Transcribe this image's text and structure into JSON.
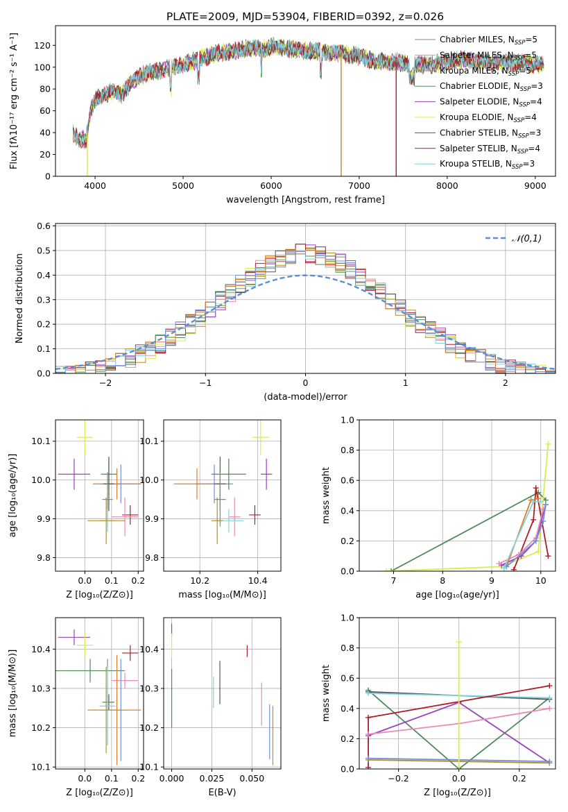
{
  "figure": {
    "title": "PLATE=2009, MJD=53904, FIBERID=0392, z=0.026"
  },
  "models": [
    {
      "name": "Chabrier MILES, N",
      "sub": "SSP",
      "suffix": "=5",
      "color": "#6b9b6b"
    },
    {
      "name": "Salpeter MILES, N",
      "sub": "SSP",
      "suffix": "=5",
      "color": "#e88ab8"
    },
    {
      "name": "Kroupa MILES, N",
      "sub": "SSP",
      "suffix": "=5",
      "color": "#b58b2a"
    },
    {
      "name": "Chabrier ELODIE, N",
      "sub": "SSP",
      "suffix": "=3",
      "color": "#4e8a5a"
    },
    {
      "name": "Salpeter ELODIE, N",
      "sub": "SSP",
      "suffix": "=4",
      "color": "#9b3fbf"
    },
    {
      "name": "Kroupa ELODIE, N",
      "sub": "SSP",
      "suffix": "=4",
      "color": "#d9ec4a"
    },
    {
      "name": "Chabrier STELIB, N",
      "sub": "SSP",
      "suffix": "=3",
      "color": "#555555"
    },
    {
      "name": "Salpeter STELIB, N",
      "sub": "SSP",
      "suffix": "=4",
      "color": "#b01a26"
    },
    {
      "name": "Kroupa STELIB, N",
      "sub": "SSP",
      "suffix": "=3",
      "color": "#7fd4e0"
    }
  ],
  "extra_colors": [
    "#e07b2c",
    "#6f8fd8"
  ],
  "chart_data": [
    {
      "id": "spectrum",
      "type": "line",
      "xlabel": "wavelength [Angstrom, rest frame]",
      "ylabel": "Flux [fλ10⁻¹⁷ erg cm⁻² s⁻¹ A⁻¹]",
      "xlim": [
        3550,
        9230
      ],
      "ylim": [
        0,
        138
      ],
      "xticks": [
        4000,
        5000,
        6000,
        7000,
        8000,
        9000
      ],
      "yticks": [
        0,
        20,
        40,
        60,
        80,
        100,
        120
      ],
      "continuum": {
        "x": [
          3750,
          3800,
          3900,
          3950,
          4000,
          4100,
          4200,
          4300,
          4400,
          4500,
          4600,
          4800,
          5000,
          5200,
          5400,
          5600,
          5800,
          5900,
          6000,
          6200,
          6400,
          6600,
          6800,
          7000,
          7200,
          7400,
          7600,
          7800,
          8000,
          8200,
          8500,
          8800,
          9100
        ],
        "y": [
          40,
          35,
          33,
          60,
          70,
          75,
          78,
          75,
          85,
          92,
          95,
          98,
          102,
          108,
          113,
          115,
          118,
          116,
          119,
          117,
          115,
          114,
          112,
          110,
          105,
          105,
          103,
          102,
          105,
          107,
          104,
          104,
          102
        ]
      },
      "dips": [
        {
          "model": 5,
          "x": 3912,
          "y": 0
        },
        {
          "model": 2,
          "x": 6795,
          "y": 0
        },
        {
          "model": 7,
          "x": 7420,
          "y": 0
        }
      ]
    },
    {
      "id": "residuals",
      "type": "histogram",
      "xlabel": "(data-model)/error",
      "ylabel": "Normed distribution",
      "xlim": [
        -2.5,
        2.5
      ],
      "ylim": [
        0,
        0.61
      ],
      "xticks": [
        -2,
        -1,
        0,
        1,
        2
      ],
      "yticks": [
        0.0,
        0.1,
        0.2,
        0.3,
        0.4,
        0.5,
        0.6
      ],
      "bin_width": 0.1,
      "legend": "𝒩(0,1)",
      "legend_position": "top-right",
      "grid": true
    },
    {
      "id": "z_age",
      "type": "errorbar",
      "xlabel": "Z [log₁₀(Z/Z⊙)]",
      "ylabel": "age  [log₁₀(age/yr)]",
      "xlim": [
        -0.11,
        0.22
      ],
      "ylim": [
        9.765,
        10.155
      ],
      "xticks": [
        0.0,
        0.1,
        0.2
      ],
      "yticks": [
        9.8,
        9.9,
        10.0,
        10.1
      ],
      "points": [
        {
          "m": 5,
          "x": 0.0,
          "xe": 0.03,
          "y": 10.11,
          "ye": 0.045
        },
        {
          "m": 4,
          "x": -0.04,
          "xe": 0.06,
          "y": 10.015,
          "ye": 0.04
        },
        {
          "m": 10,
          "x": 0.135,
          "xe": 0.075,
          "y": 9.99,
          "ye": 0.05
        },
        {
          "m": 9,
          "x": 0.12,
          "xe": 0.09,
          "y": 9.99,
          "ye": 0.04
        },
        {
          "m": 3,
          "x": 0.09,
          "xe": 0.03,
          "y": 10.015,
          "ye": 0.04
        },
        {
          "m": 6,
          "x": 0.09,
          "xe": 0.02,
          "y": 9.99,
          "ye": 0.07
        },
        {
          "m": 0,
          "x": 0.085,
          "xe": 0.02,
          "y": 9.95,
          "ye": 0.07
        },
        {
          "m": 7,
          "x": 0.17,
          "xe": 0.03,
          "y": 9.91,
          "ye": 0.025
        },
        {
          "m": 1,
          "x": 0.15,
          "xe": 0.05,
          "y": 9.905,
          "ye": 0.05
        },
        {
          "m": 8,
          "x": 0.085,
          "xe": 0.03,
          "y": 9.895,
          "ye": 0.03
        },
        {
          "m": 2,
          "x": 0.08,
          "xe": 0.07,
          "y": 9.895,
          "ye": 0.06
        }
      ]
    },
    {
      "id": "mass_age",
      "type": "errorbar",
      "xlabel": "mass [log₁₀(M/M⊙)]",
      "ylabel": "",
      "xlim": [
        10.075,
        10.48
      ],
      "ylim": [
        9.765,
        10.155
      ],
      "xticks": [
        10.2,
        10.4
      ],
      "yticks": [
        9.8,
        9.9,
        10.0,
        10.1
      ],
      "points": [
        {
          "m": 5,
          "x": 10.41,
          "xe": 0.03,
          "y": 10.11,
          "ye": 0.045
        },
        {
          "m": 4,
          "x": 10.43,
          "xe": 0.02,
          "y": 10.015,
          "ye": 0.04
        },
        {
          "m": 10,
          "x": 10.25,
          "xe": 0.065,
          "y": 9.99,
          "ye": 0.05
        },
        {
          "m": 9,
          "x": 10.19,
          "xe": 0.08,
          "y": 9.99,
          "ye": 0.04
        },
        {
          "m": 3,
          "x": 10.3,
          "xe": 0.06,
          "y": 10.015,
          "ye": 0.04
        },
        {
          "m": 6,
          "x": 10.27,
          "xe": 0.02,
          "y": 9.99,
          "ye": 0.07
        },
        {
          "m": 0,
          "x": 10.27,
          "xe": 0.02,
          "y": 9.95,
          "ye": 0.07
        },
        {
          "m": 7,
          "x": 10.39,
          "xe": 0.02,
          "y": 9.91,
          "ye": 0.025
        },
        {
          "m": 1,
          "x": 10.32,
          "xe": 0.02,
          "y": 9.905,
          "ye": 0.05
        },
        {
          "m": 8,
          "x": 10.3,
          "xe": 0.05,
          "y": 9.895,
          "ye": 0.03
        },
        {
          "m": 2,
          "x": 10.26,
          "xe": 0.02,
          "y": 9.895,
          "ye": 0.06
        }
      ]
    },
    {
      "id": "age_weight",
      "type": "line",
      "xlabel": "age  [log₁₀(age/yr)]",
      "ylabel": "mass weight",
      "xlim": [
        6.3,
        10.3
      ],
      "ylim": [
        0,
        1
      ],
      "xticks": [
        7,
        8,
        9,
        10
      ],
      "yticks": [
        0.0,
        0.2,
        0.4,
        0.6,
        0.8,
        1.0
      ],
      "series": [
        {
          "m": 3,
          "points": [
            [
              6.95,
              0.0
            ],
            [
              9.95,
              0.52
            ],
            [
              10.1,
              0.47
            ]
          ]
        },
        {
          "m": 5,
          "points": [
            [
              6.85,
              0.0
            ],
            [
              9.2,
              0.03
            ],
            [
              9.95,
              0.13
            ],
            [
              10.15,
              0.84
            ]
          ]
        },
        {
          "m": 7,
          "points": [
            [
              9.45,
              0.01
            ],
            [
              9.85,
              0.34
            ],
            [
              9.9,
              0.55
            ],
            [
              10.15,
              0.1
            ]
          ]
        },
        {
          "m": 4,
          "points": [
            [
              9.2,
              0.04
            ],
            [
              9.6,
              0.1
            ],
            [
              9.9,
              0.2
            ],
            [
              10.1,
              0.44
            ]
          ]
        },
        {
          "m": 1,
          "points": [
            [
              9.15,
              0.05
            ],
            [
              9.55,
              0.11
            ],
            [
              9.9,
              0.22
            ],
            [
              10.05,
              0.41
            ]
          ]
        },
        {
          "m": 9,
          "points": [
            [
              9.3,
              0.03
            ],
            [
              9.8,
              0.47
            ],
            [
              9.95,
              0.48
            ]
          ]
        },
        {
          "m": 10,
          "points": [
            [
              9.3,
              0.03
            ],
            [
              9.9,
              0.2
            ],
            [
              10.05,
              0.33
            ],
            [
              10.1,
              0.44
            ]
          ]
        },
        {
          "m": 8,
          "points": [
            [
              9.25,
              0.02
            ],
            [
              9.85,
              0.46
            ],
            [
              10.0,
              0.46
            ]
          ]
        }
      ]
    },
    {
      "id": "z_mass",
      "type": "errorbar",
      "xlabel": "Z [log₁₀(Z/Z⊙)]",
      "ylabel": "mass [log₁₀(M/M⊙)]",
      "xlim": [
        -0.11,
        0.22
      ],
      "ylim": [
        10.095,
        10.48
      ],
      "xticks": [
        0.0,
        0.1,
        0.2
      ],
      "yticks": [
        10.1,
        10.2,
        10.3,
        10.4
      ],
      "points": [
        {
          "m": 4,
          "x": -0.04,
          "xe": 0.06,
          "y": 10.43,
          "ye": 0.02
        },
        {
          "m": 5,
          "x": 0.0,
          "xe": 0.03,
          "y": 10.41,
          "ye": 0.03
        },
        {
          "m": 7,
          "x": 0.17,
          "xe": 0.03,
          "y": 10.39,
          "ye": 0.02
        },
        {
          "m": 3,
          "x": 0.02,
          "xe": 0.13,
          "y": 10.345,
          "ye": 0.03
        },
        {
          "m": 1,
          "x": 0.15,
          "xe": 0.05,
          "y": 10.32,
          "ye": 0.02
        },
        {
          "m": 6,
          "x": 0.09,
          "xe": 0.02,
          "y": 10.265,
          "ye": 0.02
        },
        {
          "m": 0,
          "x": 0.085,
          "xe": 0.02,
          "y": 10.265,
          "ye": 0.11
        },
        {
          "m": 10,
          "x": 0.135,
          "xe": 0.075,
          "y": 10.245,
          "ye": 0.13
        },
        {
          "m": 9,
          "x": 0.12,
          "xe": 0.09,
          "y": 10.245,
          "ye": 0.14
        },
        {
          "m": 8,
          "x": 0.085,
          "xe": 0.03,
          "y": 10.255,
          "ye": 0.1
        },
        {
          "m": 2,
          "x": 0.08,
          "xe": 0.07,
          "y": 10.245,
          "ye": 0.11
        }
      ]
    },
    {
      "id": "ebv_mass",
      "type": "errorbar",
      "xlabel": "E(B-V)",
      "ylabel": "",
      "xlim": [
        -0.005,
        0.068
      ],
      "ylim": [
        10.095,
        10.48
      ],
      "xticks": [
        0.0,
        0.025,
        0.05
      ],
      "yticks": [
        10.1,
        10.2,
        10.3,
        10.4
      ],
      "points": [
        {
          "m": 4,
          "x": 0.0,
          "xe": 0.0,
          "y": 10.45,
          "ye": 0.015
        },
        {
          "m": 5,
          "x": 0.0,
          "xe": 0.0,
          "y": 10.41,
          "ye": 0.03
        },
        {
          "m": 3,
          "x": 0.0,
          "xe": 0.0,
          "y": 10.275,
          "ye": 0.075
        },
        {
          "m": 7,
          "x": 0.047,
          "xe": 0.0,
          "y": 10.395,
          "ye": 0.015
        },
        {
          "m": 8,
          "x": 0.026,
          "xe": 0.0,
          "y": 10.29,
          "ye": 0.04
        },
        {
          "m": 6,
          "x": 0.03,
          "xe": 0.0,
          "y": 10.315,
          "ye": 0.055
        },
        {
          "m": 1,
          "x": 0.056,
          "xe": 0.0,
          "y": 10.26,
          "ye": 0.055
        },
        {
          "m": 10,
          "x": 0.061,
          "xe": 0.0,
          "y": 10.19,
          "ye": 0.07
        },
        {
          "m": 9,
          "x": 0.063,
          "xe": 0.0,
          "y": 10.18,
          "ye": 0.075
        }
      ]
    },
    {
      "id": "z_weight",
      "type": "line",
      "xlabel": "Z [log₁₀(Z/Z⊙)]",
      "ylabel": "mass weight",
      "xlim": [
        -0.33,
        0.32
      ],
      "ylim": [
        0,
        1
      ],
      "xticks": [
        -0.2,
        0.0,
        0.2
      ],
      "yticks": [
        0.0,
        0.2,
        0.4,
        0.6,
        0.8,
        1.0
      ],
      "series": [
        {
          "m": 3,
          "points": [
            [
              -0.3,
              0.52
            ],
            [
              0.0,
              0.0
            ],
            [
              0.3,
              0.47
            ]
          ]
        },
        {
          "m": 6,
          "points": [
            [
              -0.3,
              0.51
            ],
            [
              0.3,
              0.46
            ]
          ]
        },
        {
          "m": 8,
          "points": [
            [
              -0.3,
              0.5
            ],
            [
              0.3,
              0.47
            ]
          ]
        },
        {
          "m": 7,
          "points": [
            [
              -0.3,
              0.01
            ],
            [
              -0.3,
              0.34
            ],
            [
              0.3,
              0.55
            ]
          ]
        },
        {
          "m": 4,
          "points": [
            [
              -0.3,
              0.22
            ],
            [
              0.0,
              0.44
            ],
            [
              0.3,
              0.04
            ]
          ]
        },
        {
          "m": 1,
          "points": [
            [
              -0.3,
              0.23
            ],
            [
              0.0,
              0.3
            ],
            [
              0.3,
              0.4
            ]
          ]
        },
        {
          "m": 2,
          "points": [
            [
              -0.3,
              0.06
            ],
            [
              0.3,
              0.04
            ]
          ]
        },
        {
          "m": 10,
          "points": [
            [
              -0.3,
              0.07
            ],
            [
              0.3,
              0.05
            ]
          ]
        },
        {
          "m": 5,
          "points": [
            [
              0.0,
              0.0
            ],
            [
              0.0,
              0.84
            ]
          ]
        }
      ]
    }
  ]
}
